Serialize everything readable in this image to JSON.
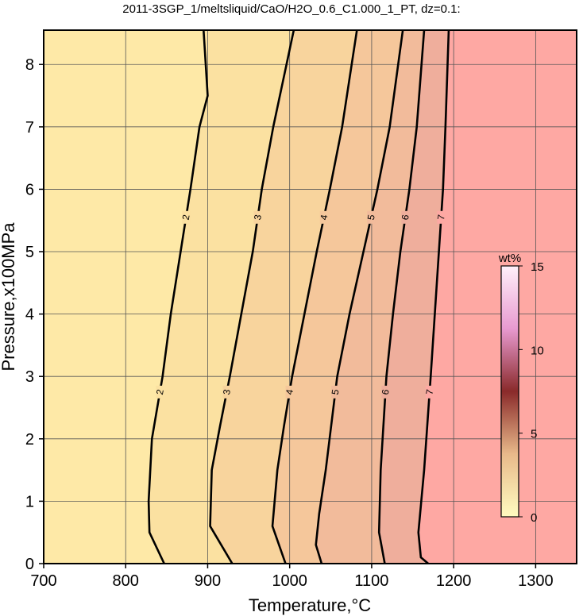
{
  "chart_data": {
    "type": "contour",
    "title": "2011-3SGP_1/meltsliquid/CaO/H2O_0.6_C1.000_1_PT, dz=0.1:",
    "x_label": "Temperature,°C",
    "y_label": "Pressure,x100MPa",
    "xlim": [
      700,
      1350
    ],
    "xticks": [
      700,
      800,
      900,
      1000,
      1100,
      1200,
      1300
    ],
    "ylim": [
      0,
      8.55
    ],
    "yticks": [
      0,
      1,
      2,
      3,
      4,
      5,
      6,
      7,
      8
    ],
    "grid": true,
    "background_color": "#fee9a7",
    "series": [
      {
        "name": "2",
        "color": "#fbe1a1",
        "x": [
          847,
          829,
          828,
          832,
          845,
          855,
          867,
          879,
          890,
          900,
          895
        ],
        "y": [
          0,
          0.5,
          1.0,
          2.0,
          3.0,
          4.0,
          5.0,
          6.0,
          7.0,
          7.5,
          8.55
        ]
      },
      {
        "name": "3",
        "color": "#f8d49d",
        "x": [
          930,
          903,
          905,
          915,
          927,
          941,
          955,
          966,
          980,
          1005
        ],
        "y": [
          0,
          0.6,
          1.5,
          2.2,
          3.0,
          4.0,
          5.0,
          6.0,
          7.0,
          8.55
        ]
      },
      {
        "name": "4",
        "color": "#f5c79b",
        "x": [
          995,
          979,
          985,
          993,
          1003,
          1018,
          1033,
          1049,
          1064,
          1082
        ],
        "y": [
          0,
          0.6,
          1.5,
          2.2,
          3.0,
          4.0,
          5.0,
          6.0,
          7.0,
          8.55
        ]
      },
      {
        "name": "5",
        "color": "#f2bb9b",
        "x": [
          1039,
          1032,
          1036,
          1044,
          1058,
          1073,
          1090,
          1107,
          1122,
          1138
        ],
        "y": [
          0,
          0.3,
          0.8,
          1.5,
          3.0,
          4.0,
          5.0,
          6.0,
          7.0,
          8.55
        ]
      },
      {
        "name": "6",
        "color": "#efae9c",
        "x": [
          1116,
          1109,
          1111,
          1118,
          1126,
          1135,
          1146,
          1155,
          1164
        ],
        "y": [
          0,
          0.5,
          1.5,
          3.0,
          4.0,
          5.0,
          6.0,
          7.0,
          8.55
        ]
      },
      {
        "name": "7",
        "color": "#fea8a3",
        "x": [
          1169,
          1160,
          1157,
          1164,
          1172,
          1177,
          1182,
          1187,
          1190,
          1194
        ],
        "y": [
          0,
          0.1,
          0.5,
          1.5,
          3.0,
          4.0,
          5.0,
          6.0,
          7.0,
          8.55
        ]
      }
    ],
    "colorbar": {
      "label": "wt%",
      "lim": [
        0,
        15
      ],
      "ticks": [
        0,
        5,
        10,
        15
      ],
      "colors": [
        "#fffcc0",
        "#e8b98a",
        "#8a2a2a",
        "#e89ad0",
        "#fff0fa"
      ]
    }
  }
}
